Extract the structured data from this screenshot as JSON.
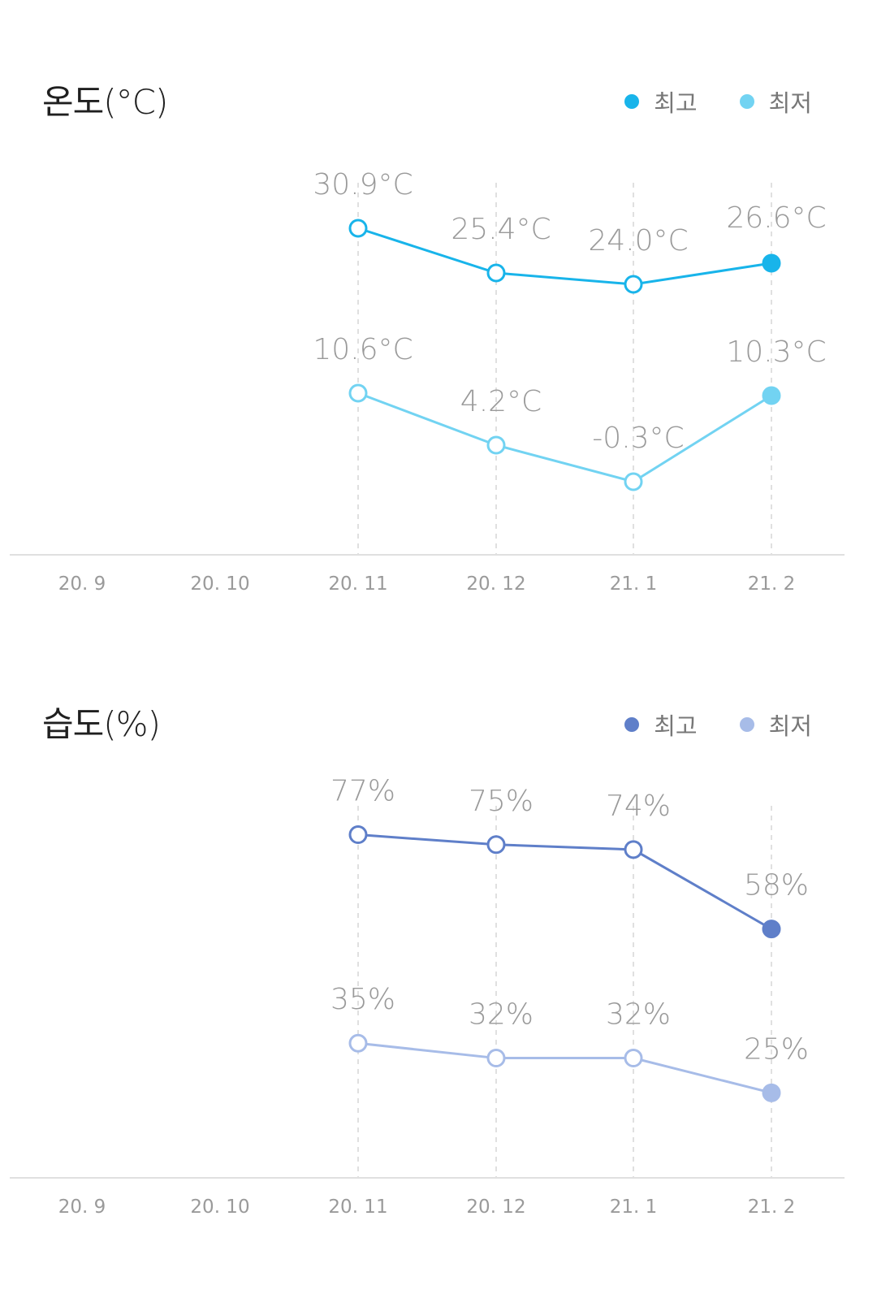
{
  "chart_data": [
    {
      "type": "line",
      "title": "온도(°C)",
      "categories": [
        "20. 9",
        "20. 10",
        "20. 11",
        "20. 12",
        "21. 1",
        "21. 2"
      ],
      "series": [
        {
          "name": "최고",
          "color": "#18b4ea",
          "values": [
            null,
            null,
            30.9,
            25.4,
            24.0,
            26.6
          ],
          "labels": [
            null,
            null,
            "30.9°C",
            "25.4°C",
            "24.0°C",
            "26.6°C"
          ]
        },
        {
          "name": "최저",
          "color": "#72d3f2",
          "values": [
            null,
            null,
            10.6,
            4.2,
            -0.3,
            10.3
          ],
          "labels": [
            null,
            null,
            "10.6°C",
            "4.2°C",
            "-0.3°C",
            "10.3°C"
          ]
        }
      ],
      "ylim": [
        -8,
        36
      ],
      "grid": "vertical dashed at data points",
      "legend": "top-right"
    },
    {
      "type": "line",
      "title": "습도(%)",
      "categories": [
        "20. 9",
        "20. 10",
        "20. 11",
        "20. 12",
        "21. 1",
        "21. 2"
      ],
      "series": [
        {
          "name": "최고",
          "color": "#5f7fc9",
          "values": [
            null,
            null,
            77,
            75,
            74,
            58
          ],
          "labels": [
            null,
            null,
            "77%",
            "75%",
            "74%",
            "58%"
          ]
        },
        {
          "name": "최저",
          "color": "#a7bce8",
          "values": [
            null,
            null,
            35,
            32,
            32,
            25
          ],
          "labels": [
            null,
            null,
            "35%",
            "32%",
            "32%",
            "25%"
          ]
        }
      ],
      "ylim": [
        10,
        82
      ],
      "grid": "vertical dashed at data points",
      "legend": "top-right"
    }
  ]
}
